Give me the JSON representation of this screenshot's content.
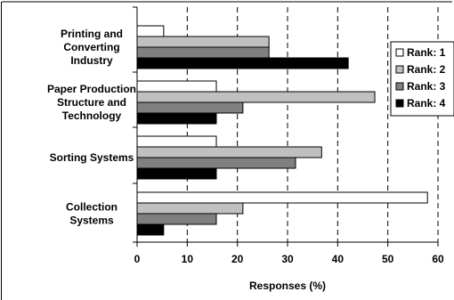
{
  "chart_data": {
    "type": "bar",
    "orientation": "horizontal",
    "categories": [
      "Printing and\nConverting\nIndustry",
      "Paper Production\nStructure and\nTechnology",
      "Sorting Systems",
      "Collection\nSystems"
    ],
    "series": [
      {
        "name": "Rank: 1",
        "color": "#ffffff",
        "values": [
          5.3,
          15.8,
          15.8,
          57.9
        ]
      },
      {
        "name": "Rank: 2",
        "color": "#c0c0c0",
        "values": [
          26.3,
          47.4,
          36.8,
          21.1
        ]
      },
      {
        "name": "Rank: 3",
        "color": "#808080",
        "values": [
          26.3,
          21.1,
          31.6,
          15.8
        ]
      },
      {
        "name": "Rank: 4",
        "color": "#000000",
        "values": [
          42.1,
          15.8,
          15.8,
          5.3
        ]
      }
    ],
    "xlabel": "Responses (%)",
    "ylabel": "",
    "title": "",
    "xlim": [
      0,
      60
    ],
    "xticks": [
      "0",
      "10",
      "20",
      "30",
      "40",
      "50",
      "60"
    ],
    "grid": "vertical dashed",
    "legend": "right"
  }
}
